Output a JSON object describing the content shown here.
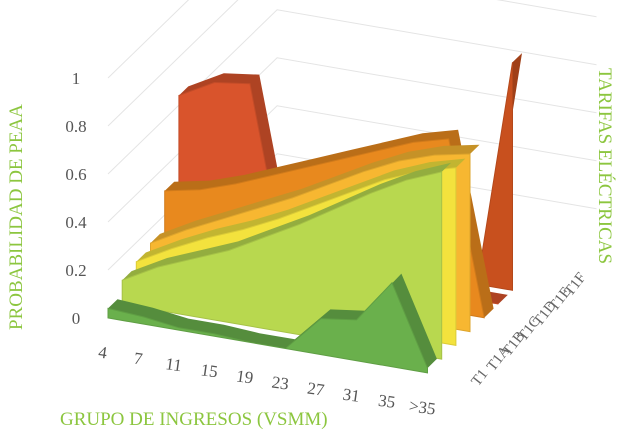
{
  "chart_data": {
    "type": "area",
    "subtype": "3d-area",
    "xlabel": "GRUPO DE INGRESOS (VSMM)",
    "ylabel": "PROBABILIDAD DE PEAA",
    "zlabel": "TARIFAS ELÉCTRICAS",
    "categories": [
      "4",
      "7",
      "11",
      "15",
      "19",
      "23",
      "27",
      "31",
      "35",
      ">35"
    ],
    "y_ticks": [
      "0",
      "0.2",
      "0.4",
      "0.6",
      "0.8",
      "1"
    ],
    "ylim": [
      0,
      1
    ],
    "grid": true,
    "series": [
      {
        "name": "T1",
        "color": "#6ab04c",
        "values": [
          0.04,
          0.03,
          0.01,
          0.01,
          0.0,
          0.0,
          0.15,
          0.17,
          0.35,
          0.02
        ]
      },
      {
        "name": "T1A",
        "color": "#b8d84f",
        "values": [
          0.1,
          0.18,
          0.24,
          0.3,
          0.38,
          0.46,
          0.55,
          0.64,
          0.72,
          0.78
        ]
      },
      {
        "name": "T1B",
        "color": "#f3e23d",
        "values": [
          0.12,
          0.2,
          0.27,
          0.33,
          0.4,
          0.48,
          0.56,
          0.64,
          0.7,
          0.74
        ]
      },
      {
        "name": "T1C",
        "color": "#f7b731",
        "values": [
          0.14,
          0.22,
          0.29,
          0.36,
          0.43,
          0.51,
          0.59,
          0.66,
          0.71,
          0.74
        ]
      },
      {
        "name": "T1D",
        "color": "#e8891e",
        "values": [
          0.3,
          0.33,
          0.38,
          0.44,
          0.5,
          0.56,
          0.62,
          0.68,
          0.72,
          0.0
        ]
      },
      {
        "name": "T1E",
        "color": "#d9542c",
        "values": [
          0.64,
          0.72,
          0.74,
          0.0,
          0.0,
          0.0,
          0.0,
          0.0,
          0.0,
          0.0
        ]
      },
      {
        "name": "T1F",
        "color": "#c8501e",
        "values": [
          0,
          0,
          0,
          0,
          0,
          0,
          0,
          0,
          0,
          0.95
        ]
      }
    ]
  }
}
